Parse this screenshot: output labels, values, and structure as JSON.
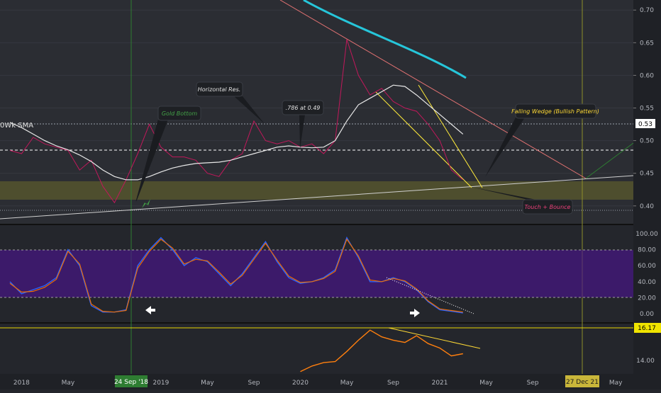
{
  "price_axis": {
    "ticks": [
      "0.70",
      "0.65",
      "0.60",
      "0.55",
      "0.50",
      "0.45",
      "0.40"
    ],
    "current_price": "0.53"
  },
  "sma_label": "0Wk SMA",
  "stoch_axis": {
    "ticks": [
      "100.00",
      "80.00",
      "60.00",
      "40.00",
      "20.00",
      "0.00"
    ]
  },
  "vol_axis": {
    "ticks": [
      "14.00"
    ],
    "current_value": "16.17"
  },
  "time_axis": {
    "labels": [
      "2018",
      "May",
      "2019",
      "May",
      "Sep",
      "2020",
      "May",
      "Sep",
      "2021",
      "May",
      "Sep",
      "May"
    ],
    "highlight_left": "24 Sep '18",
    "highlight_right": "27 Dec 21"
  },
  "annotations": {
    "gold_bottom": "Gold Bottom",
    "horizontal_res": "Horizontal Res.",
    "fib_786": ".786 at 0.49",
    "falling_wedge": "Falling Wedge (Bullish Pattern)",
    "touch_bounce": "Touch + Bounce"
  },
  "colors": {
    "background": "#24262c",
    "price_line": "#c2185b",
    "sma_white": "#e8e8e8",
    "sma_cyan": "#26c6da",
    "stoch_k": "#2962ff",
    "stoch_d": "#ef6c00",
    "stoch_band": "#4a148c",
    "support_zone": "#6b6a2a",
    "wedge": "#ffeb3b",
    "resistance": "#e57373",
    "highlight_label": "#c9b63a",
    "date_highlight": "#2e7d32",
    "vol_line": "#ff7f0e",
    "vol_value_bg": "#f0e400"
  },
  "chart_data": [
    {
      "type": "line",
      "panel": "price",
      "x": [
        "2017-12",
        "2018-01",
        "2018-02",
        "2018-03",
        "2018-04",
        "2018-05",
        "2018-06",
        "2018-07",
        "2018-08",
        "2018-09",
        "2018-10",
        "2018-11",
        "2018-12",
        "2019-01",
        "2019-02",
        "2019-03",
        "2019-04",
        "2019-05",
        "2019-06",
        "2019-07",
        "2019-08",
        "2019-09",
        "2019-10",
        "2019-11",
        "2019-12",
        "2020-01",
        "2020-02",
        "2020-03",
        "2020-04",
        "2020-05",
        "2020-06",
        "2020-07",
        "2020-08",
        "2020-09",
        "2020-10",
        "2020-11",
        "2020-12",
        "2021-01",
        "2021-02",
        "2021-03"
      ],
      "series": [
        {
          "values": [
            0.485,
            0.48,
            0.505,
            0.495,
            0.49,
            0.485,
            0.455,
            0.47,
            0.43,
            0.405,
            0.44,
            0.48,
            0.525,
            0.49,
            0.475,
            0.475,
            0.47,
            0.45,
            0.445,
            0.47,
            0.48,
            0.53,
            0.5,
            0.495,
            0.5,
            0.49,
            0.495,
            0.48,
            0.5,
            0.655,
            0.6,
            0.57,
            0.58,
            0.56,
            0.55,
            0.545,
            0.525,
            0.5,
            0.455,
            0.44
          ]
        },
        {
          "values": [
            0.528,
            0.52,
            0.51,
            0.5,
            0.492,
            0.486,
            0.478,
            0.468,
            0.455,
            0.445,
            0.44,
            0.44,
            0.445,
            0.452,
            0.458,
            0.462,
            0.465,
            0.466,
            0.467,
            0.47,
            0.475,
            0.48,
            0.485,
            0.49,
            0.492,
            0.49,
            0.489,
            0.49,
            0.5,
            0.53,
            0.555,
            0.565,
            0.575,
            0.585,
            0.583,
            0.57,
            0.555,
            0.54,
            0.525,
            0.51
          ]
        }
      ],
      "ylim": [
        0.39,
        0.71
      ]
    },
    {
      "type": "line",
      "panel": "stochastic",
      "x": [
        "2017-12",
        "2018-01",
        "2018-02",
        "2018-03",
        "2018-04",
        "2018-05",
        "2018-06",
        "2018-07",
        "2018-08",
        "2018-09",
        "2018-10",
        "2018-11",
        "2018-12",
        "2019-01",
        "2019-02",
        "2019-03",
        "2019-04",
        "2019-05",
        "2019-06",
        "2019-07",
        "2019-08",
        "2019-09",
        "2019-10",
        "2019-11",
        "2019-12",
        "2020-01",
        "2020-02",
        "2020-03",
        "2020-04",
        "2020-05",
        "2020-06",
        "2020-07",
        "2020-08",
        "2020-09",
        "2020-10",
        "2020-11",
        "2020-12",
        "2021-01",
        "2021-02",
        "2021-03"
      ],
      "series": [
        {
          "values": [
            40,
            25,
            30,
            35,
            45,
            80,
            60,
            10,
            2,
            2,
            5,
            60,
            80,
            95,
            80,
            60,
            70,
            65,
            50,
            35,
            50,
            70,
            90,
            65,
            45,
            38,
            40,
            45,
            55,
            95,
            70,
            40,
            40,
            45,
            40,
            30,
            15,
            5,
            3,
            1
          ]
        },
        {
          "values": [
            38,
            27,
            28,
            33,
            43,
            78,
            62,
            12,
            3,
            2,
            4,
            57,
            78,
            93,
            82,
            62,
            68,
            66,
            52,
            37,
            48,
            68,
            88,
            67,
            47,
            39,
            40,
            44,
            53,
            93,
            72,
            42,
            40,
            44,
            41,
            31,
            16,
            6,
            4,
            2
          ]
        }
      ],
      "ylim": [
        -8,
        108
      ]
    },
    {
      "type": "line",
      "panel": "lower",
      "x": [
        "2020-01",
        "2020-02",
        "2020-03",
        "2020-04",
        "2020-05",
        "2020-06",
        "2020-07",
        "2020-08",
        "2020-09",
        "2020-10",
        "2020-11",
        "2020-12",
        "2021-01",
        "2021-02",
        "2021-03"
      ],
      "series": [
        {
          "values": [
            12.7,
            13.2,
            13.5,
            13.6,
            14.5,
            15.5,
            16.4,
            15.8,
            15.5,
            15.3,
            15.9,
            15.2,
            14.8,
            14.1,
            14.3
          ]
        }
      ],
      "ylim": [
        12.5,
        16.6
      ]
    }
  ]
}
